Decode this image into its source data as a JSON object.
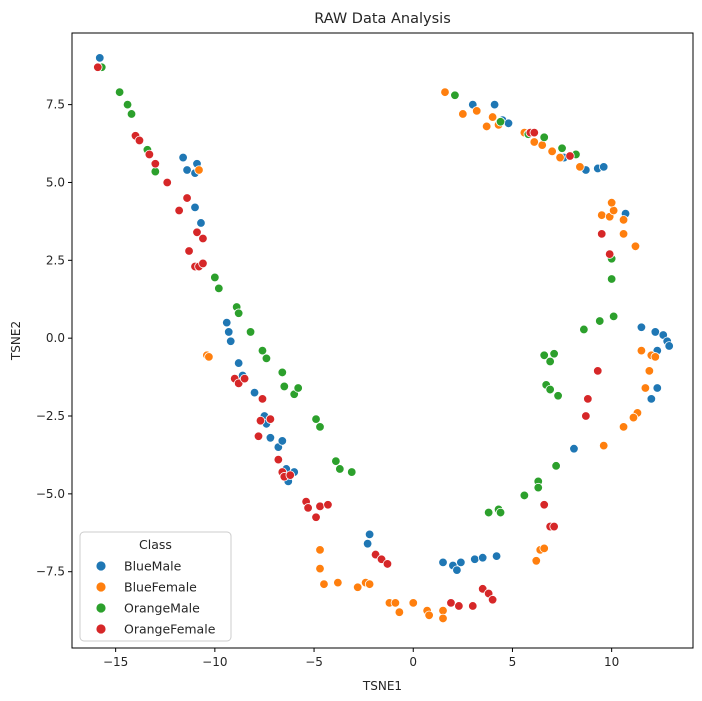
{
  "chart_data": {
    "type": "scatter",
    "title": "RAW Data Analysis",
    "xlabel": "TSNE1",
    "ylabel": "TSNE2",
    "xlim": [
      -17.2,
      14.1
    ],
    "ylim": [
      -9.95,
      9.8
    ],
    "xticks": [
      -15,
      -10,
      -5,
      0,
      5,
      10
    ],
    "xtick_labels": [
      "−15",
      "−10",
      "−5",
      "0",
      "5",
      "10"
    ],
    "yticks": [
      -7.5,
      -5.0,
      -2.5,
      0.0,
      2.5,
      5.0,
      7.5
    ],
    "ytick_labels": [
      "−7.5",
      "−5.0",
      "−2.5",
      "0.0",
      "2.5",
      "5.0",
      "7.5"
    ],
    "grid": false,
    "legend": {
      "title": "Class",
      "placement": "lower-left"
    },
    "series": [
      {
        "name": "BlueMale",
        "color": "#1f77b4",
        "points": [
          [
            -15.8,
            9.0
          ],
          [
            -11.6,
            5.8
          ],
          [
            -11.4,
            5.4
          ],
          [
            -11.0,
            5.3
          ],
          [
            -10.9,
            5.6
          ],
          [
            -11.0,
            4.2
          ],
          [
            -10.7,
            3.7
          ],
          [
            -9.4,
            0.5
          ],
          [
            -9.3,
            0.2
          ],
          [
            -9.2,
            -0.1
          ],
          [
            -8.8,
            -0.8
          ],
          [
            -8.6,
            -1.2
          ],
          [
            -8.0,
            -1.75
          ],
          [
            -7.5,
            -2.5
          ],
          [
            -7.4,
            -2.75
          ],
          [
            -7.2,
            -3.2
          ],
          [
            -6.8,
            -3.5
          ],
          [
            -6.6,
            -3.3
          ],
          [
            -6.4,
            -4.2
          ],
          [
            -6.3,
            -4.6
          ],
          [
            -6.0,
            -4.3
          ],
          [
            -2.2,
            -6.3
          ],
          [
            -2.3,
            -6.6
          ],
          [
            1.5,
            -7.2
          ],
          [
            2.0,
            -7.3
          ],
          [
            2.2,
            -7.45
          ],
          [
            2.4,
            -7.2
          ],
          [
            3.1,
            -7.1
          ],
          [
            3.5,
            -7.05
          ],
          [
            4.2,
            -7.0
          ],
          [
            3.0,
            7.5
          ],
          [
            4.1,
            7.5
          ],
          [
            4.5,
            7.0
          ],
          [
            4.8,
            6.9
          ],
          [
            7.6,
            5.8
          ],
          [
            8.7,
            5.4
          ],
          [
            9.3,
            5.45
          ],
          [
            9.6,
            5.5
          ],
          [
            10.7,
            4.0
          ],
          [
            11.5,
            0.35
          ],
          [
            12.2,
            0.2
          ],
          [
            12.6,
            0.1
          ],
          [
            12.8,
            -0.1
          ],
          [
            12.9,
            -0.25
          ],
          [
            12.3,
            -0.4
          ],
          [
            12.3,
            -1.6
          ],
          [
            12.0,
            -1.95
          ],
          [
            8.1,
            -3.55
          ]
        ]
      },
      {
        "name": "BlueFemale",
        "color": "#ff7f0e",
        "points": [
          [
            -10.8,
            5.4
          ],
          [
            -10.4,
            -0.55
          ],
          [
            -10.3,
            -0.6
          ],
          [
            -4.7,
            -6.8
          ],
          [
            -4.7,
            -7.4
          ],
          [
            -4.5,
            -7.9
          ],
          [
            -3.8,
            -7.85
          ],
          [
            -2.8,
            -8.0
          ],
          [
            -2.4,
            -7.85
          ],
          [
            -2.2,
            -7.9
          ],
          [
            -1.2,
            -8.5
          ],
          [
            -0.9,
            -8.5
          ],
          [
            -0.7,
            -8.8
          ],
          [
            0.0,
            -8.5
          ],
          [
            0.7,
            -8.75
          ],
          [
            0.8,
            -8.9
          ],
          [
            1.5,
            -8.75
          ],
          [
            1.5,
            -9.0
          ],
          [
            1.6,
            7.9
          ],
          [
            2.5,
            7.2
          ],
          [
            3.2,
            7.3
          ],
          [
            3.7,
            6.8
          ],
          [
            4.0,
            7.1
          ],
          [
            4.3,
            6.85
          ],
          [
            5.6,
            6.6
          ],
          [
            5.8,
            6.55
          ],
          [
            6.1,
            6.3
          ],
          [
            6.5,
            6.2
          ],
          [
            7.0,
            6.0
          ],
          [
            7.4,
            5.8
          ],
          [
            8.4,
            5.5
          ],
          [
            9.5,
            3.95
          ],
          [
            9.9,
            3.9
          ],
          [
            10.1,
            4.1
          ],
          [
            10.0,
            4.35
          ],
          [
            10.6,
            3.8
          ],
          [
            10.6,
            3.35
          ],
          [
            11.2,
            2.95
          ],
          [
            11.5,
            -0.4
          ],
          [
            12.0,
            -0.55
          ],
          [
            12.2,
            -0.6
          ],
          [
            11.9,
            -1.05
          ],
          [
            11.7,
            -1.6
          ],
          [
            11.3,
            -2.4
          ],
          [
            11.1,
            -2.55
          ],
          [
            10.6,
            -2.85
          ],
          [
            9.6,
            -3.45
          ],
          [
            6.4,
            -6.8
          ],
          [
            6.6,
            -6.75
          ],
          [
            6.2,
            -7.15
          ]
        ]
      },
      {
        "name": "OrangeMale",
        "color": "#2ca02c",
        "points": [
          [
            -15.7,
            8.7
          ],
          [
            -14.8,
            7.9
          ],
          [
            -14.4,
            7.5
          ],
          [
            -14.2,
            7.2
          ],
          [
            -13.4,
            6.05
          ],
          [
            -13.0,
            5.35
          ],
          [
            -10.0,
            1.95
          ],
          [
            -9.8,
            1.6
          ],
          [
            -8.9,
            1.0
          ],
          [
            -8.8,
            0.8
          ],
          [
            -8.2,
            0.2
          ],
          [
            -7.6,
            -0.4
          ],
          [
            -7.4,
            -0.65
          ],
          [
            -6.6,
            -1.1
          ],
          [
            -6.5,
            -1.55
          ],
          [
            -6.0,
            -1.8
          ],
          [
            -5.8,
            -1.6
          ],
          [
            -4.9,
            -2.6
          ],
          [
            -4.7,
            -2.85
          ],
          [
            -3.9,
            -3.95
          ],
          [
            -3.7,
            -4.2
          ],
          [
            -3.1,
            -4.3
          ],
          [
            2.1,
            7.8
          ],
          [
            4.4,
            6.95
          ],
          [
            5.8,
            6.55
          ],
          [
            6.6,
            6.45
          ],
          [
            7.5,
            6.1
          ],
          [
            8.2,
            5.9
          ],
          [
            10.0,
            2.55
          ],
          [
            10.0,
            1.9
          ],
          [
            10.1,
            0.7
          ],
          [
            9.4,
            0.55
          ],
          [
            8.6,
            0.28
          ],
          [
            6.6,
            -0.55
          ],
          [
            7.1,
            -0.5
          ],
          [
            6.9,
            -0.75
          ],
          [
            6.7,
            -1.5
          ],
          [
            6.9,
            -1.65
          ],
          [
            7.3,
            -1.85
          ],
          [
            7.2,
            -4.1
          ],
          [
            6.3,
            -4.6
          ],
          [
            6.3,
            -4.8
          ],
          [
            5.6,
            -5.05
          ],
          [
            3.8,
            -5.6
          ],
          [
            4.3,
            -5.5
          ],
          [
            4.4,
            -5.6
          ]
        ]
      },
      {
        "name": "OrangeFemale",
        "color": "#d62728",
        "points": [
          [
            -15.9,
            8.7
          ],
          [
            -14.0,
            6.5
          ],
          [
            -13.8,
            6.35
          ],
          [
            -13.3,
            5.9
          ],
          [
            -13.0,
            5.6
          ],
          [
            -12.4,
            5.0
          ],
          [
            -11.8,
            4.1
          ],
          [
            -11.4,
            4.5
          ],
          [
            -11.3,
            2.8
          ],
          [
            -11.0,
            2.3
          ],
          [
            -10.9,
            3.4
          ],
          [
            -10.8,
            2.3
          ],
          [
            -10.6,
            3.2
          ],
          [
            -10.6,
            2.4
          ],
          [
            -9.0,
            -1.3
          ],
          [
            -8.8,
            -1.45
          ],
          [
            -8.5,
            -1.3
          ],
          [
            -7.6,
            -1.95
          ],
          [
            -7.2,
            -2.6
          ],
          [
            -7.7,
            -2.65
          ],
          [
            -7.8,
            -3.15
          ],
          [
            -6.8,
            -3.9
          ],
          [
            -6.6,
            -4.3
          ],
          [
            -6.5,
            -4.45
          ],
          [
            -6.2,
            -4.4
          ],
          [
            -5.4,
            -5.25
          ],
          [
            -5.3,
            -5.45
          ],
          [
            -4.9,
            -5.75
          ],
          [
            -4.7,
            -5.4
          ],
          [
            -4.3,
            -5.35
          ],
          [
            -1.9,
            -6.95
          ],
          [
            -1.6,
            -7.1
          ],
          [
            -1.3,
            -7.25
          ],
          [
            1.9,
            -8.5
          ],
          [
            2.3,
            -8.6
          ],
          [
            3.0,
            -8.6
          ],
          [
            3.5,
            -8.05
          ],
          [
            3.8,
            -8.2
          ],
          [
            4.0,
            -8.4
          ],
          [
            5.9,
            6.6
          ],
          [
            6.1,
            6.6
          ],
          [
            7.9,
            5.85
          ],
          [
            9.5,
            3.35
          ],
          [
            9.9,
            2.7
          ],
          [
            9.3,
            -1.05
          ],
          [
            8.8,
            -1.95
          ],
          [
            8.7,
            -2.5
          ],
          [
            6.6,
            -5.35
          ],
          [
            6.9,
            -6.05
          ],
          [
            7.1,
            -6.05
          ]
        ]
      }
    ]
  }
}
